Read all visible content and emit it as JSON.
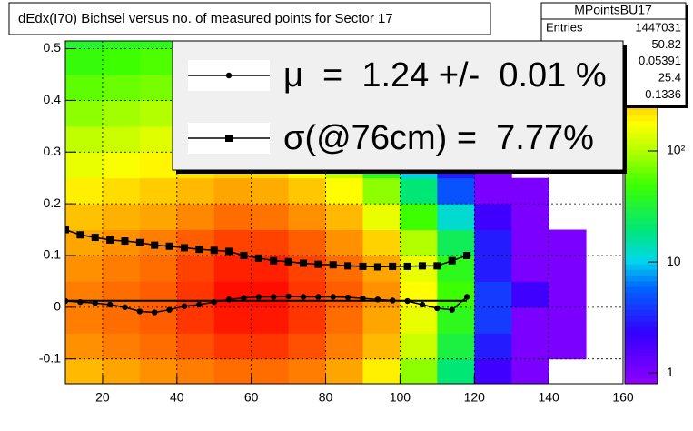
{
  "chart_data": {
    "type": "heatmap",
    "title": "dEdx(I70) Bichsel versus no. of measured points for Sector 17",
    "xlim": [
      10,
      160
    ],
    "xticks": [
      20,
      40,
      60,
      80,
      100,
      120,
      140,
      160
    ],
    "ylim": [
      -0.148,
      0.515
    ],
    "yticks": [
      -0.1,
      0,
      0.1,
      0.2,
      0.3,
      0.4,
      0.5
    ],
    "grid": true,
    "zscale": "log",
    "zlim": [
      0.8,
      980
    ],
    "zticks": [
      1,
      10,
      {
        "value": 100,
        "label": "10²"
      }
    ],
    "xbins": [
      10,
      20,
      30,
      40,
      50,
      60,
      70,
      80,
      90,
      100,
      110,
      120,
      130,
      140,
      150,
      160
    ],
    "ybins": [
      -0.15,
      -0.1,
      -0.05,
      0,
      0.05,
      0.1,
      0.15,
      0.2,
      0.25,
      0.3,
      0.35,
      0.4,
      0.45,
      0.5,
      0.55
    ],
    "z": [
      [
        300,
        350,
        400,
        450,
        500,
        500,
        450,
        350,
        200,
        80,
        20,
        2,
        1,
        null,
        null
      ],
      [
        400,
        450,
        500,
        600,
        700,
        700,
        600,
        450,
        300,
        120,
        30,
        3,
        1,
        1,
        null
      ],
      [
        450,
        500,
        550,
        700,
        850,
        850,
        700,
        500,
        350,
        150,
        40,
        4,
        1,
        1,
        null
      ],
      [
        450,
        500,
        550,
        700,
        900,
        900,
        700,
        550,
        400,
        180,
        50,
        4,
        2,
        1,
        null
      ],
      [
        400,
        450,
        500,
        650,
        800,
        800,
        650,
        500,
        350,
        150,
        40,
        3,
        1,
        1,
        null
      ],
      [
        350,
        400,
        450,
        550,
        650,
        650,
        550,
        400,
        250,
        100,
        25,
        3,
        1,
        1,
        null
      ],
      [
        280,
        320,
        350,
        420,
        500,
        480,
        400,
        300,
        150,
        50,
        12,
        2,
        1,
        null,
        null
      ],
      [
        200,
        230,
        260,
        300,
        350,
        330,
        270,
        180,
        80,
        20,
        5,
        1,
        1,
        null,
        null
      ],
      [
        150,
        170,
        190,
        220,
        250,
        230,
        180,
        110,
        40,
        10,
        3,
        1,
        null,
        null,
        null
      ],
      [
        110,
        120,
        140,
        160,
        170,
        150,
        110,
        60,
        20,
        5,
        2,
        1,
        null,
        null,
        null
      ],
      [
        80,
        90,
        100,
        110,
        120,
        100,
        70,
        35,
        10,
        3,
        1,
        null,
        null,
        null,
        null
      ],
      [
        60,
        65,
        70,
        80,
        80,
        65,
        45,
        20,
        6,
        2,
        1,
        null,
        null,
        null,
        null
      ],
      [
        45,
        50,
        55,
        60,
        55,
        45,
        30,
        12,
        4,
        1,
        null,
        null,
        null,
        null,
        null
      ],
      [
        35,
        40,
        40,
        45,
        40,
        35,
        20,
        8,
        3,
        1,
        null,
        null,
        null,
        null,
        null
      ]
    ],
    "x": [
      10,
      14,
      18,
      22,
      26,
      30,
      34,
      38,
      42,
      46,
      50,
      54,
      58,
      62,
      66,
      70,
      74,
      78,
      82,
      86,
      90,
      94,
      98,
      102,
      106,
      110,
      114,
      118
    ],
    "series": [
      {
        "name": "μ  =  1.24 +/-  0.01 %",
        "marker": "circle",
        "color": "#000000",
        "values": [
          0.012,
          0.01,
          0.008,
          0.005,
          0,
          -0.008,
          -0.01,
          -0.005,
          0.002,
          0.005,
          0.01,
          0.015,
          0.018,
          0.02,
          0.02,
          0.021,
          0.02,
          0.02,
          0.02,
          0.019,
          0.017,
          0.015,
          0.013,
          0.012,
          0.005,
          -0.002,
          -0.005,
          0.02
        ]
      },
      {
        "name": "σ(@76cm) =  7.77%",
        "marker": "square",
        "color": "#000000",
        "values": [
          0.15,
          0.14,
          0.135,
          0.13,
          0.128,
          0.125,
          0.12,
          0.118,
          0.115,
          0.112,
          0.11,
          0.108,
          0.1,
          0.095,
          0.09,
          0.088,
          0.085,
          0.083,
          0.082,
          0.08,
          0.079,
          0.078,
          0.079,
          0.079,
          0.08,
          0.08,
          0.09,
          0.1
        ]
      }
    ],
    "mean_line": {
      "value": 0.0124,
      "xrange": [
        10,
        118
      ]
    },
    "stats": {
      "title": "MPointsBU17",
      "entries_label": "Entries",
      "values": [
        1447031,
        50.82,
        0.05391,
        25.4,
        0.1336
      ]
    }
  }
}
